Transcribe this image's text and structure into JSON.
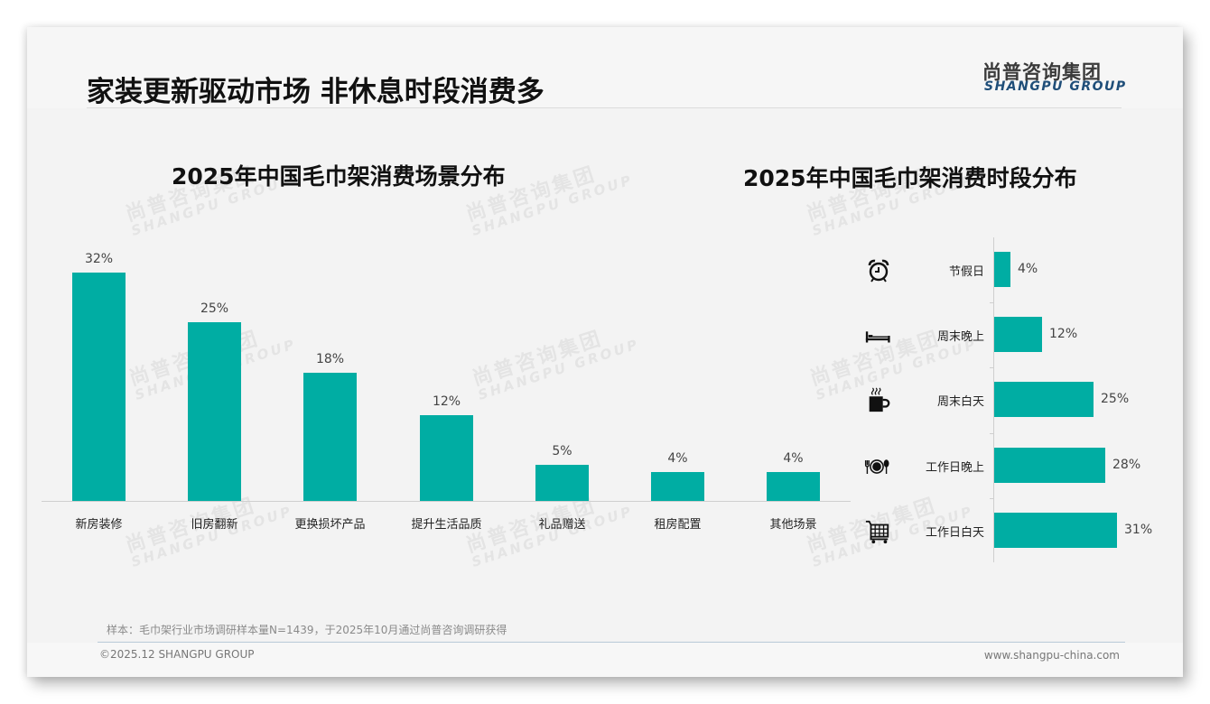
{
  "header": {
    "title": "家装更新驱动市场 非休息时段消费多",
    "logo_cn": "尚普咨询集团",
    "logo_en": "SHANGPU GROUP"
  },
  "watermark": {
    "cn": "尚普咨询集团",
    "en": "SHANGPU GROUP"
  },
  "colors": {
    "bar": "#00ada3",
    "logo_en": "#1f4e79",
    "title": "#111111"
  },
  "chart_data": [
    {
      "type": "bar",
      "title": "2025年中国毛巾架消费场景分布",
      "categories": [
        "新房装修",
        "旧房翻新",
        "更换损坏产品",
        "提升生活品质",
        "礼品赠送",
        "租房配置",
        "其他场景"
      ],
      "values": [
        32,
        25,
        18,
        12,
        5,
        4,
        4
      ],
      "labels": [
        "32%",
        "25%",
        "18%",
        "12%",
        "5%",
        "4%",
        "4%"
      ],
      "xlabel": "",
      "ylabel": "",
      "unit": "%",
      "grid": false,
      "legend": "none",
      "orientation": "vertical"
    },
    {
      "type": "bar",
      "title": "2025年中国毛巾架消费时段分布",
      "categories": [
        "节假日",
        "周末晚上",
        "周末白天",
        "工作日晚上",
        "工作日白天"
      ],
      "values": [
        4,
        12,
        25,
        28,
        31
      ],
      "labels": [
        "4%",
        "12%",
        "25%",
        "28%",
        "31%"
      ],
      "icons": [
        "alarm-clock-icon",
        "bed-icon",
        "coffee-cup-icon",
        "plate-cutlery-icon",
        "shopping-cart-icon"
      ],
      "xlabel": "",
      "ylabel": "",
      "unit": "%",
      "grid": false,
      "legend": "none",
      "orientation": "horizontal"
    }
  ],
  "footer": {
    "note": "样本：毛巾架行业市场调研样本量N=1439，于2025年10月通过尚普咨询调研获得",
    "copyright": "©2025.12 SHANGPU GROUP",
    "website": "www.shangpu-china.com"
  }
}
